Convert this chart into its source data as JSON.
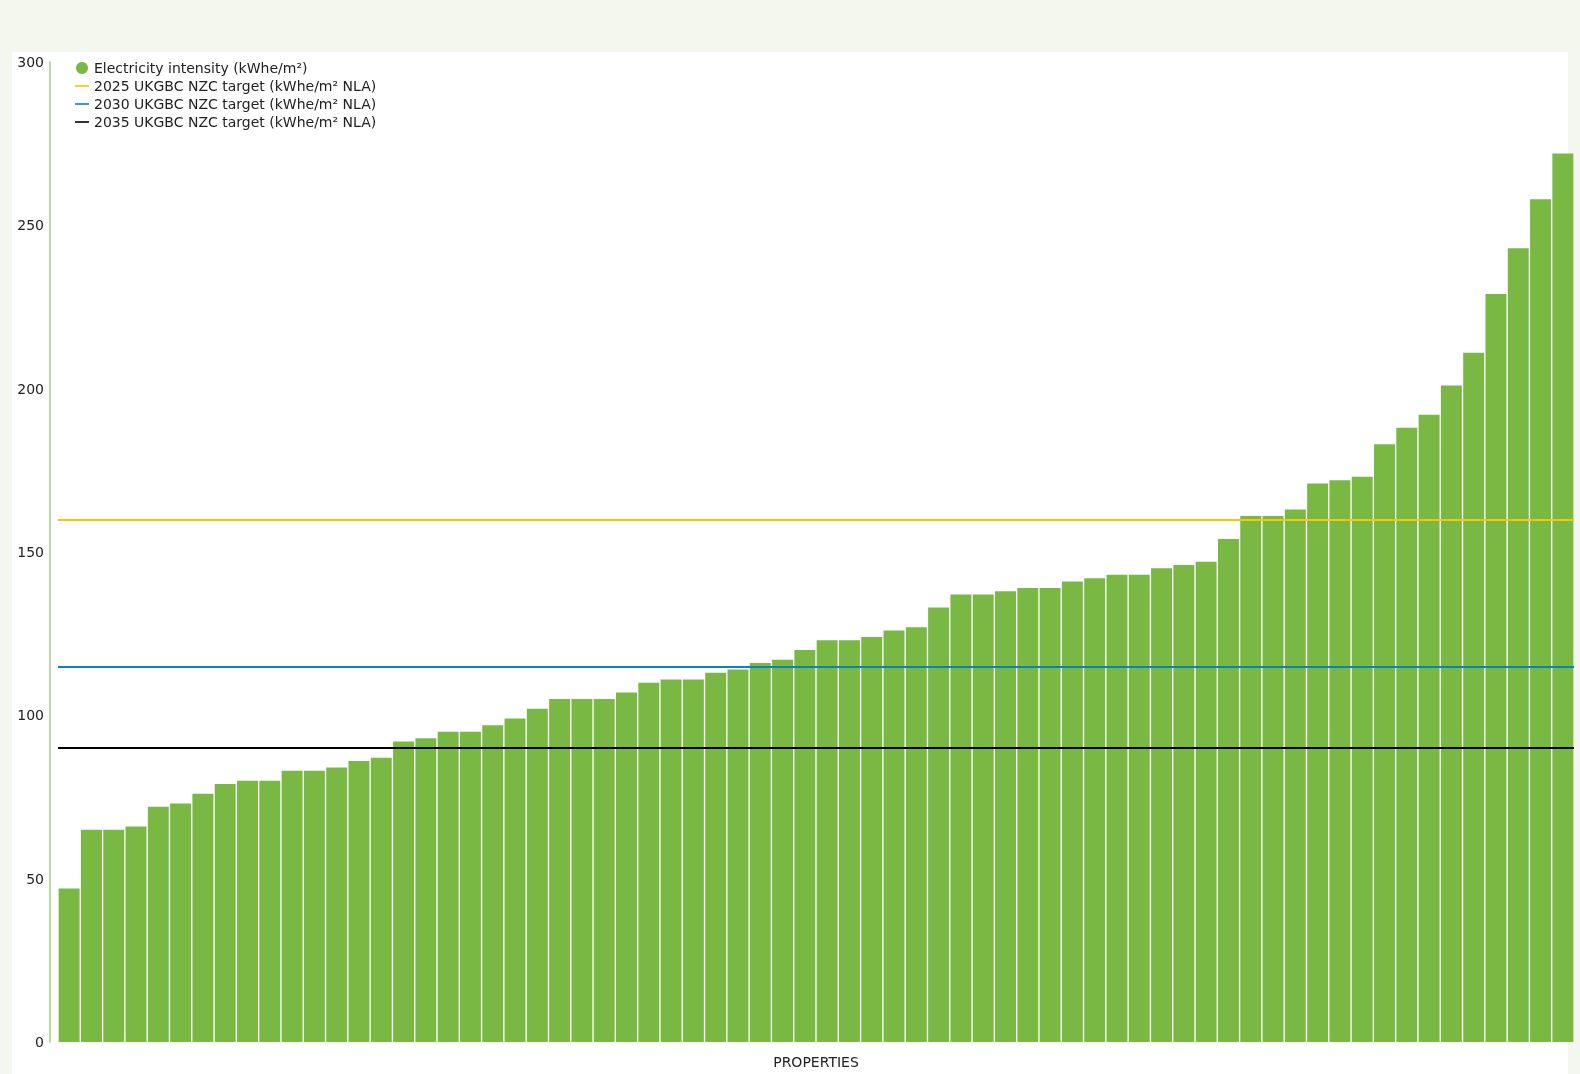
{
  "chart_data": {
    "type": "bar",
    "xlabel": "PROPERTIES",
    "categories": [
      null,
      null,
      null,
      null,
      null,
      null,
      null,
      null,
      null,
      null,
      null,
      null,
      null,
      null,
      null,
      null,
      null,
      null,
      null,
      null,
      null,
      null,
      null,
      null,
      null,
      null,
      null,
      null,
      null,
      null,
      null,
      null,
      null,
      null,
      null,
      null,
      null,
      null,
      null,
      null,
      null,
      null,
      null,
      null,
      null,
      null,
      null,
      null,
      null,
      null,
      null,
      null,
      null,
      null,
      null,
      null,
      null,
      null,
      null,
      null,
      null,
      null,
      null,
      null,
      null,
      null,
      null,
      null
    ],
    "series": [
      {
        "name": "Electricity intensity (kWhe/m²)",
        "color": "#78b843",
        "values": [
          47,
          65,
          65,
          66,
          72,
          73,
          76,
          79,
          80,
          80,
          83,
          83,
          84,
          86,
          87,
          92,
          93,
          95,
          95,
          97,
          99,
          102,
          105,
          105,
          105,
          107,
          110,
          111,
          111,
          113,
          114,
          116,
          117,
          120,
          123,
          123,
          124,
          126,
          127,
          133,
          137,
          137,
          138,
          139,
          139,
          141,
          142,
          143,
          143,
          145,
          146,
          147,
          154,
          161,
          161,
          163,
          171,
          172,
          173,
          183,
          188,
          192,
          201,
          211,
          229,
          243,
          258,
          272
        ]
      }
    ],
    "ylim": [
      0,
      300
    ],
    "yticks": [
      0,
      50,
      100,
      150,
      200,
      250,
      300
    ],
    "ref_lines": [
      {
        "axis": "y",
        "value": 160,
        "label": "2025 UKGBC NZC target (kWhe/m² NLA)",
        "color": "#f7c800"
      },
      {
        "axis": "y",
        "value": 115,
        "label": "2030 UKGBC NZC target (kWhe/m² NLA)",
        "color": "#0a84b8"
      },
      {
        "axis": "y",
        "value": 90,
        "label": "2035 UKGBC NZC target (kWhe/m² NLA)",
        "color": "#000000"
      }
    ],
    "legend": "top left",
    "tick_labels": "y"
  }
}
